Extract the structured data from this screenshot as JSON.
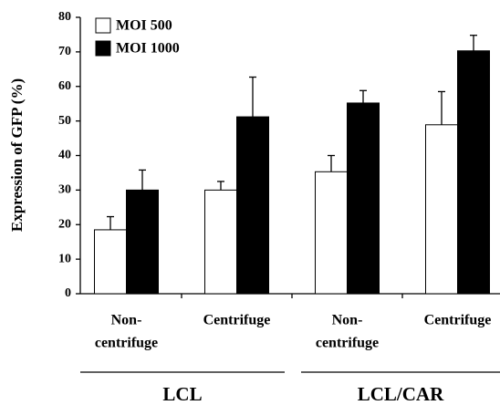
{
  "chart_data": {
    "type": "bar",
    "y_label": "Expression of GFP (%)",
    "categories": [
      [
        "Non-",
        "centrifuge"
      ],
      [
        "Centrifuge"
      ],
      [
        "Non-",
        "centrifuge"
      ],
      [
        "Centrifuge"
      ]
    ],
    "group_labels": [
      "LCL",
      "LCL/CAR"
    ],
    "series": [
      {
        "name": "MOI 500",
        "color": "#ffffff",
        "values": [
          18.5,
          30,
          35.3,
          48.9
        ],
        "errors": [
          3.8,
          2.5,
          4.7,
          9.6
        ]
      },
      {
        "name": "MOI 1000",
        "color": "#000000",
        "values": [
          30,
          51.2,
          55.2,
          70.3
        ],
        "errors": [
          5.8,
          11.5,
          3.6,
          4.5
        ]
      }
    ],
    "ylim": [
      0,
      80
    ],
    "yticks": [
      0,
      10,
      20,
      30,
      40,
      50,
      60,
      70,
      80
    ],
    "legend": "upper left",
    "grid": false
  }
}
